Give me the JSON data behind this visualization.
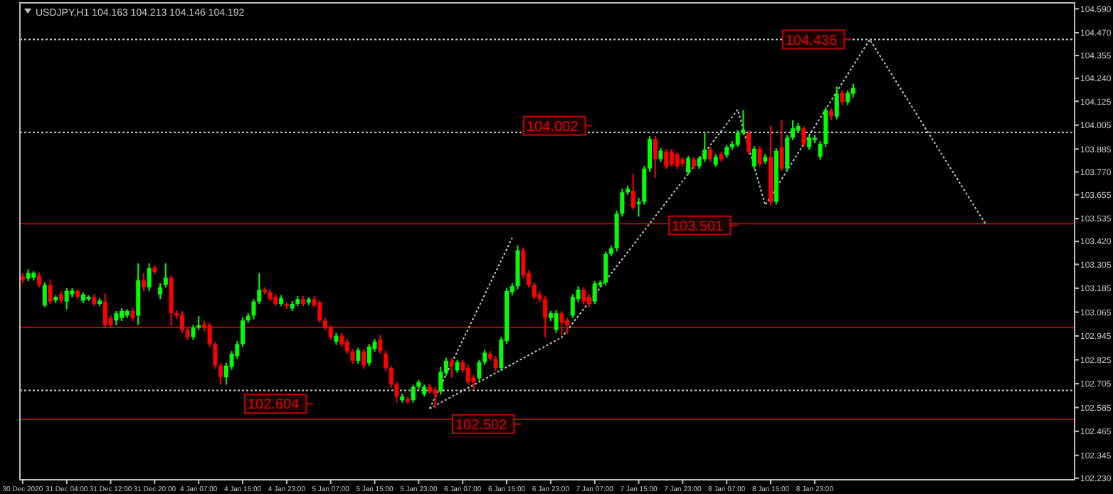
{
  "chart_data": {
    "type": "candlestick",
    "title": "USDJPY,H1 104.163 104.213 104.146 104.192",
    "categories": [
      "30 Dec 2020",
      null,
      null,
      null,
      null,
      null,
      null,
      null,
      "31 Dec 04:00",
      null,
      null,
      null,
      null,
      null,
      null,
      null,
      "31 Dec 12:00",
      null,
      null,
      null,
      null,
      null,
      null,
      null,
      "31 Dec 20:00",
      null,
      null,
      null,
      null,
      null,
      null,
      null,
      "4 Jan 07:00",
      null,
      null,
      null,
      null,
      null,
      null,
      null,
      "4 Jan 15:00",
      null,
      null,
      null,
      null,
      null,
      null,
      null,
      "4 Jan 23:00",
      null,
      null,
      null,
      null,
      null,
      null,
      null,
      "5 Jan 07:00",
      null,
      null,
      null,
      null,
      null,
      null,
      null,
      "5 Jan 15:00",
      null,
      null,
      null,
      null,
      null,
      null,
      null,
      "5 Jan 23:00",
      null,
      null,
      null,
      null,
      null,
      null,
      null,
      "6 Jan 07:00",
      null,
      null,
      null,
      null,
      null,
      null,
      null,
      "6 Jan 15:00",
      null,
      null,
      null,
      null,
      null,
      null,
      null,
      "6 Jan 23:00",
      null,
      null,
      null,
      null,
      null,
      null,
      null,
      "7 Jan 07:00",
      null,
      null,
      null,
      null,
      null,
      null,
      null,
      "7 Jan 15:00",
      null,
      null,
      null,
      null,
      null,
      null,
      null,
      "7 Jan 23:00",
      null,
      null,
      null,
      null,
      null,
      null,
      null,
      "8 Jan 07:00",
      null,
      null,
      null,
      null,
      null,
      null,
      null,
      "8 Jan 15:00",
      null,
      null,
      null,
      null,
      null,
      null,
      null,
      "8 Jan 23:00",
      null,
      null,
      null,
      null,
      null,
      null,
      null,
      null,
      null,
      null,
      null,
      null,
      null,
      null,
      null,
      null,
      null,
      null,
      null,
      null,
      null,
      null,
      null,
      null,
      null,
      null,
      null,
      null,
      null,
      null,
      null,
      null,
      null,
      null,
      null,
      null,
      null,
      null,
      null,
      null,
      null,
      null,
      null,
      null,
      null,
      null,
      null
    ],
    "ohlc": [
      [
        103.245,
        103.26,
        103.21,
        103.226
      ],
      [
        103.233,
        103.28,
        103.22,
        103.262
      ],
      [
        103.238,
        103.27,
        103.225,
        103.262
      ],
      [
        103.25,
        103.265,
        103.19,
        103.202
      ],
      [
        103.099,
        103.215,
        103.09,
        103.202
      ],
      [
        103.202,
        103.23,
        103.105,
        103.118
      ],
      [
        103.123,
        103.15,
        103.11,
        103.142
      ],
      [
        103.154,
        103.17,
        103.11,
        103.123
      ],
      [
        103.118,
        103.185,
        103.08,
        103.171
      ],
      [
        103.154,
        103.185,
        103.14,
        103.173
      ],
      [
        103.171,
        103.18,
        103.13,
        103.142
      ],
      [
        103.123,
        103.165,
        103.11,
        103.154
      ],
      [
        103.13,
        103.15,
        103.12,
        103.142
      ],
      [
        103.142,
        103.155,
        103.095,
        103.106
      ],
      [
        103.106,
        103.135,
        103.095,
        103.123
      ],
      [
        103.118,
        103.16,
        102.985,
        102.999
      ],
      [
        103.035,
        103.05,
        102.985,
        102.999
      ],
      [
        103.023,
        103.07,
        103.0,
        103.059
      ],
      [
        103.035,
        103.085,
        103.02,
        103.071
      ],
      [
        103.047,
        103.08,
        103.035,
        103.071
      ],
      [
        103.071,
        103.085,
        103.02,
        103.035
      ],
      [
        103.047,
        103.31,
        103.0,
        103.226
      ],
      [
        103.226,
        103.26,
        103.17,
        103.19
      ],
      [
        103.19,
        103.31,
        103.17,
        103.286
      ],
      [
        103.29,
        103.3,
        103.255,
        103.266
      ],
      [
        103.154,
        103.21,
        103.13,
        103.19
      ],
      [
        103.202,
        103.31,
        103.19,
        103.238
      ],
      [
        103.238,
        103.25,
        102.995,
        103.059
      ],
      [
        103.059,
        103.075,
        103.03,
        103.047
      ],
      [
        103.052,
        103.07,
        102.96,
        102.975
      ],
      [
        102.975,
        102.99,
        102.925,
        102.939
      ],
      [
        102.939,
        103.0,
        102.925,
        102.987
      ],
      [
        102.987,
        103.045,
        102.975,
        102.999
      ],
      [
        103.004,
        103.02,
        102.97,
        102.987
      ],
      [
        102.999,
        103.01,
        102.89,
        102.904
      ],
      [
        102.904,
        102.915,
        102.78,
        102.796
      ],
      [
        102.796,
        102.81,
        102.7,
        102.737
      ],
      [
        102.737,
        102.81,
        102.7,
        102.796
      ],
      [
        102.789,
        102.87,
        102.775,
        102.856
      ],
      [
        102.844,
        102.92,
        102.83,
        102.904
      ],
      [
        102.904,
        103.04,
        102.89,
        103.023
      ],
      [
        103.023,
        103.06,
        103.01,
        103.047
      ],
      [
        103.047,
        103.13,
        103.03,
        103.118
      ],
      [
        103.118,
        103.26,
        103.105,
        103.178
      ],
      [
        103.178,
        103.19,
        103.155,
        103.166
      ],
      [
        103.166,
        103.18,
        103.12,
        103.13
      ],
      [
        103.142,
        103.155,
        103.095,
        103.106
      ],
      [
        103.106,
        103.15,
        103.095,
        103.135
      ],
      [
        103.106,
        103.115,
        103.08,
        103.095
      ],
      [
        103.083,
        103.12,
        103.07,
        103.106
      ],
      [
        103.106,
        103.145,
        103.095,
        103.13
      ],
      [
        103.13,
        103.145,
        103.095,
        103.106
      ],
      [
        103.114,
        103.14,
        103.1,
        103.13
      ],
      [
        103.13,
        103.145,
        103.09,
        103.099
      ],
      [
        103.114,
        103.125,
        103.01,
        103.023
      ],
      [
        103.023,
        103.035,
        102.975,
        102.987
      ],
      [
        102.987,
        103.0,
        102.925,
        102.939
      ],
      [
        102.916,
        102.96,
        102.9,
        102.947
      ],
      [
        102.947,
        102.96,
        102.89,
        102.904
      ],
      [
        102.916,
        102.93,
        102.855,
        102.868
      ],
      [
        102.868,
        102.88,
        102.805,
        102.82
      ],
      [
        102.82,
        102.885,
        102.805,
        102.873
      ],
      [
        102.868,
        102.88,
        102.78,
        102.796
      ],
      [
        102.808,
        102.905,
        102.795,
        102.892
      ],
      [
        102.88,
        102.93,
        102.865,
        102.916
      ],
      [
        102.928,
        102.95,
        102.855,
        102.868
      ],
      [
        102.856,
        102.87,
        102.77,
        102.784
      ],
      [
        102.784,
        102.795,
        102.685,
        102.701
      ],
      [
        102.701,
        102.715,
        102.61,
        102.641
      ],
      [
        102.622,
        102.655,
        102.61,
        102.641
      ],
      [
        102.629,
        102.64,
        102.605,
        102.617
      ],
      [
        102.622,
        102.7,
        102.61,
        102.689
      ],
      [
        102.689,
        102.725,
        102.675,
        102.713
      ],
      [
        102.653,
        102.7,
        102.64,
        102.689
      ],
      [
        102.689,
        102.705,
        102.655,
        102.665
      ],
      [
        102.677,
        102.69,
        102.58,
        102.653
      ],
      [
        102.665,
        102.79,
        102.65,
        102.765
      ],
      [
        102.76,
        102.835,
        102.745,
        102.82
      ],
      [
        102.82,
        102.835,
        102.735,
        102.796
      ],
      [
        102.772,
        102.825,
        102.76,
        102.813
      ],
      [
        102.813,
        102.825,
        102.76,
        102.772
      ],
      [
        102.784,
        102.8,
        102.7,
        102.713
      ],
      [
        102.736,
        102.75,
        102.675,
        102.713
      ],
      [
        102.732,
        102.825,
        102.72,
        102.813
      ],
      [
        102.813,
        102.875,
        102.8,
        102.861
      ],
      [
        102.856,
        102.87,
        102.82,
        102.832
      ],
      [
        102.832,
        102.845,
        102.77,
        102.784
      ],
      [
        102.784,
        102.94,
        102.77,
        102.927
      ],
      [
        102.92,
        103.185,
        102.905,
        103.171
      ],
      [
        103.166,
        103.21,
        103.15,
        103.195
      ],
      [
        103.195,
        103.4,
        103.18,
        103.376
      ],
      [
        103.376,
        103.39,
        103.235,
        103.25
      ],
      [
        103.261,
        103.275,
        103.19,
        103.202
      ],
      [
        103.202,
        103.215,
        103.13,
        103.142
      ],
      [
        103.154,
        103.17,
        103.115,
        103.13
      ],
      [
        103.13,
        103.145,
        102.94,
        103.035
      ],
      [
        103.035,
        103.07,
        103.02,
        103.059
      ],
      [
        102.975,
        103.075,
        102.96,
        103.059
      ],
      [
        103.059,
        103.07,
        102.95,
        103.011
      ],
      [
        103.023,
        103.035,
        102.955,
        102.999
      ],
      [
        103.047,
        103.155,
        103.035,
        103.142
      ],
      [
        103.13,
        103.195,
        103.115,
        103.178
      ],
      [
        103.178,
        103.19,
        103.105,
        103.118
      ],
      [
        103.142,
        103.155,
        103.09,
        103.106
      ],
      [
        103.118,
        103.22,
        103.105,
        103.209
      ],
      [
        103.202,
        103.225,
        103.19,
        103.214
      ],
      [
        103.214,
        103.37,
        103.2,
        103.357
      ],
      [
        103.357,
        103.4,
        103.345,
        103.386
      ],
      [
        103.386,
        103.575,
        103.37,
        103.56
      ],
      [
        103.56,
        103.685,
        103.545,
        103.667
      ],
      [
        103.667,
        103.7,
        103.655,
        103.686
      ],
      [
        103.674,
        103.76,
        103.58,
        103.591
      ],
      [
        103.608,
        103.64,
        103.545,
        103.619
      ],
      [
        103.619,
        103.8,
        103.605,
        103.787
      ],
      [
        103.787,
        103.95,
        103.77,
        103.935
      ],
      [
        103.935,
        103.95,
        103.74,
        103.834
      ],
      [
        103.834,
        103.89,
        103.82,
        103.877
      ],
      [
        103.87,
        103.885,
        103.785,
        103.798
      ],
      [
        103.87,
        103.885,
        103.795,
        103.81
      ],
      [
        103.858,
        103.87,
        103.785,
        103.798
      ],
      [
        103.834,
        103.845,
        103.795,
        103.81
      ],
      [
        103.767,
        103.85,
        103.755,
        103.839
      ],
      [
        103.834,
        103.845,
        103.785,
        103.798
      ],
      [
        103.798,
        103.85,
        103.785,
        103.839
      ],
      [
        103.834,
        103.97,
        103.82,
        103.882
      ],
      [
        103.882,
        103.895,
        103.82,
        103.834
      ],
      [
        103.806,
        103.86,
        103.795,
        103.846
      ],
      [
        103.858,
        103.87,
        103.82,
        103.834
      ],
      [
        103.853,
        103.905,
        103.84,
        103.894
      ],
      [
        103.894,
        103.925,
        103.88,
        103.911
      ],
      [
        103.906,
        103.98,
        103.895,
        103.966
      ],
      [
        103.966,
        104.08,
        103.955,
        103.982
      ],
      [
        103.966,
        103.98,
        103.855,
        103.87
      ],
      [
        103.798,
        103.9,
        103.785,
        103.887
      ],
      [
        103.887,
        103.9,
        103.795,
        103.81
      ],
      [
        103.822,
        103.86,
        103.81,
        103.846
      ],
      [
        103.846,
        104.0,
        103.6,
        103.619
      ],
      [
        103.619,
        103.89,
        103.605,
        103.877
      ],
      [
        103.894,
        104.03,
        103.775,
        103.787
      ],
      [
        103.787,
        103.955,
        103.775,
        103.942
      ],
      [
        103.942,
        104.03,
        103.93,
        103.989
      ],
      [
        103.977,
        104.015,
        103.965,
        104.001
      ],
      [
        103.989,
        104.0,
        103.895,
        103.906
      ],
      [
        103.894,
        103.955,
        103.88,
        103.942
      ],
      [
        103.93,
        103.955,
        103.915,
        103.942
      ],
      [
        103.846,
        103.925,
        103.83,
        103.911
      ],
      [
        103.911,
        104.095,
        103.895,
        104.08
      ],
      [
        104.078,
        104.09,
        104.03,
        104.049
      ],
      [
        104.049,
        104.2,
        104.035,
        104.164
      ],
      [
        104.168,
        104.18,
        104.105,
        104.121
      ],
      [
        104.121,
        104.18,
        104.105,
        104.168
      ],
      [
        104.163,
        104.213,
        104.146,
        104.192
      ],
      null,
      null,
      null,
      null,
      null,
      null,
      null,
      null,
      null,
      null,
      null,
      null,
      null,
      null,
      null,
      null,
      null,
      null,
      null,
      null,
      null,
      null,
      null,
      null,
      null,
      null,
      null,
      null,
      null,
      null,
      null,
      null,
      null,
      null,
      null,
      null,
      null,
      null,
      null,
      null
    ],
    "colors": [
      "#ff0000",
      "#00ff00",
      "#00ff00",
      "#ff0000",
      "#00ff00",
      "#ff0000",
      "#00ff00",
      "#ff0000",
      "#00ff00",
      "#00ff00",
      "#ff0000",
      "#00ff00",
      "#00ff00",
      "#ff0000",
      "#00ff00",
      "#ff0000",
      "#ff0000",
      "#00ff00",
      "#00ff00",
      "#00ff00",
      "#ff0000",
      "#00ff00",
      "#ff0000",
      "#00ff00",
      "#ff0000",
      "#00ff00",
      "#00ff00",
      "#ff0000",
      "#ff0000",
      "#ff0000",
      "#ff0000",
      "#00ff00",
      "#00ff00",
      "#ff0000",
      "#ff0000",
      "#ff0000",
      "#ff0000",
      "#00ff00",
      "#00ff00",
      "#00ff00",
      "#00ff00",
      "#00ff00",
      "#00ff00",
      "#00ff00",
      "#ff0000",
      "#ff0000",
      "#ff0000",
      "#00ff00",
      "#ff0000",
      "#00ff00",
      "#00ff00",
      "#ff0000",
      "#00ff00",
      "#ff0000",
      "#ff0000",
      "#ff0000",
      "#ff0000",
      "#00ff00",
      "#ff0000",
      "#ff0000",
      "#ff0000",
      "#00ff00",
      "#ff0000",
      "#00ff00",
      "#00ff00",
      "#ff0000",
      "#ff0000",
      "#ff0000",
      "#ff0000",
      "#00ff00",
      "#ff0000",
      "#00ff00",
      "#00ff00",
      "#00ff00",
      "#ff0000",
      "#ff0000",
      "#00ff00",
      "#00ff00",
      "#ff0000",
      "#00ff00",
      "#ff0000",
      "#ff0000",
      "#ff0000",
      "#00ff00",
      "#00ff00",
      "#ff0000",
      "#ff0000",
      "#00ff00",
      "#00ff00",
      "#00ff00",
      "#00ff00",
      "#ff0000",
      "#ff0000",
      "#ff0000",
      "#ff0000",
      "#ff0000",
      "#00ff00",
      "#00ff00",
      "#ff0000",
      "#ff0000",
      "#00ff00",
      "#00ff00",
      "#ff0000",
      "#ff0000",
      "#00ff00",
      "#00ff00",
      "#00ff00",
      "#00ff00",
      "#00ff00",
      "#00ff00",
      "#00ff00",
      "#ff0000",
      "#00ff00",
      "#00ff00",
      "#00ff00",
      "#ff0000",
      "#00ff00",
      "#ff0000",
      "#ff0000",
      "#ff0000",
      "#ff0000",
      "#00ff00",
      "#ff0000",
      "#00ff00",
      "#00ff00",
      "#ff0000",
      "#00ff00",
      "#ff0000",
      "#00ff00",
      "#00ff00",
      "#00ff00",
      "#00ff00",
      "#ff0000",
      "#00ff00",
      "#ff0000",
      "#00ff00",
      "#ff0000",
      "#00ff00",
      "#ff0000",
      "#00ff00",
      "#00ff00",
      "#00ff00",
      "#ff0000",
      "#00ff00",
      "#00ff00",
      "#00ff00",
      "#00ff00",
      "#ff0000",
      "#00ff00",
      "#ff0000",
      "#00ff00",
      "#00ff00",
      null,
      null,
      null,
      null,
      null,
      null,
      null,
      null,
      null,
      null,
      null,
      null,
      null,
      null,
      null,
      null,
      null,
      null,
      null,
      null,
      null,
      null,
      null,
      null,
      null,
      null,
      null,
      null,
      null,
      null,
      null,
      null,
      null,
      null,
      null,
      null,
      null,
      null,
      null,
      null
    ],
    "series": [
      {
        "type": "line",
        "color": "#c8c8c8",
        "values": [
          null,
          null,
          null,
          null,
          null,
          null,
          null,
          null,
          null,
          null,
          null,
          null,
          null,
          null,
          null,
          null,
          null,
          null,
          null,
          null,
          null,
          null,
          null,
          null,
          null,
          null,
          null,
          null,
          null,
          null,
          null,
          null,
          null,
          null,
          null,
          null,
          null,
          null,
          null,
          null,
          null,
          null,
          null,
          null,
          null,
          null,
          null,
          null,
          null,
          null,
          null,
          null,
          null,
          null,
          null,
          null,
          null,
          null,
          null,
          null,
          null,
          null,
          null,
          null,
          null,
          null,
          null,
          null,
          null,
          null,
          null,
          null,
          null,
          null,
          102.58,
          null,
          null,
          null,
          null,
          null,
          null,
          null,
          null,
          null,
          null,
          null,
          null,
          null,
          null,
          null,
          null,
          null,
          null,
          null,
          null,
          null,
          null,
          null,
          102.938,
          null,
          null,
          null,
          null,
          null,
          null,
          null,
          null,
          null,
          null,
          null,
          null,
          null,
          null,
          null,
          103.51,
          null,
          null,
          null,
          null,
          null,
          null,
          null,
          null,
          null,
          null,
          null,
          null,
          null,
          null,
          null,
          104.083,
          null,
          null,
          null,
          null,
          103.603,
          null,
          null,
          null,
          null,
          null,
          null,
          null,
          null,
          null,
          null,
          null,
          null,
          null,
          null,
          null,
          null,
          null,
          null,
          104.436,
          null,
          null,
          null,
          null,
          null,
          null,
          null,
          null,
          null,
          null,
          null,
          null,
          null,
          null,
          null,
          null,
          null,
          null,
          null,
          null,
          103.51,
          null,
          null,
          null,
          null,
          null,
          null,
          null,
          null,
          null,
          null,
          null,
          null,
          null,
          null,
          null,
          null
        ]
      },
      {
        "type": "line",
        "color": "#c8c8c8",
        "values": [
          null,
          null,
          null,
          null,
          null,
          null,
          null,
          null,
          null,
          null,
          null,
          null,
          null,
          null,
          null,
          null,
          null,
          null,
          null,
          null,
          null,
          null,
          null,
          null,
          null,
          null,
          null,
          null,
          null,
          null,
          null,
          null,
          null,
          null,
          null,
          null,
          null,
          null,
          null,
          null,
          null,
          null,
          null,
          null,
          null,
          null,
          null,
          null,
          null,
          null,
          null,
          null,
          null,
          null,
          null,
          null,
          null,
          null,
          null,
          null,
          null,
          null,
          null,
          null,
          null,
          null,
          null,
          null,
          null,
          null,
          null,
          null,
          null,
          null,
          102.58,
          null,
          null,
          null,
          null,
          null,
          null,
          null,
          null,
          null,
          null,
          null,
          null,
          null,
          null,
          103.439,
          null,
          null,
          null,
          null,
          null,
          null,
          null,
          null,
          null,
          null,
          null,
          null,
          null,
          null,
          null,
          null,
          null,
          null,
          null,
          null,
          null,
          null,
          null,
          null,
          null,
          null,
          null,
          null,
          null,
          null,
          null,
          null,
          null,
          null,
          null,
          null,
          null,
          null,
          null,
          null,
          null,
          null,
          null,
          null,
          null,
          null,
          null,
          null,
          null,
          null,
          null,
          null,
          null,
          null,
          null,
          null,
          null,
          null,
          null,
          null,
          null,
          null,
          null,
          null,
          null,
          null,
          null,
          null,
          null,
          null,
          null,
          null,
          null,
          null,
          null,
          null,
          null,
          null,
          null,
          null,
          null,
          null,
          null,
          null,
          null,
          null,
          null,
          null,
          null,
          null,
          null,
          null,
          null,
          null,
          null,
          null,
          null,
          null,
          null,
          null,
          null,
          null
        ]
      }
    ],
    "line_style": "dotted",
    "ylim": [
      102.222,
      104.62
    ],
    "yticks": [
      {
        "value": 102.23,
        "label": "102.230"
      },
      102.345,
      102.465,
      102.585,
      102.705,
      102.825,
      102.945,
      103.065,
      103.185,
      103.305,
      {
        "value": 103.42,
        "label": "103.420"
      },
      103.535,
      103.655,
      {
        "value": 103.77,
        "label": "103.770"
      },
      103.885,
      104.005,
      104.125,
      {
        "value": 104.24,
        "label": "104.240"
      },
      104.355,
      {
        "value": 104.47,
        "label": "104.470"
      },
      {
        "value": 104.59,
        "label": "104.590"
      }
    ],
    "ref_lines": [
      {
        "axis": "y",
        "value": 103.51,
        "label": null,
        "color": "#b00000",
        "line_style": "solid"
      },
      {
        "axis": "y",
        "value": 102.988,
        "label": null,
        "color": "#b00000",
        "line_style": "solid"
      },
      {
        "axis": "y",
        "value": 102.526,
        "label": null,
        "color": "#b00000",
        "line_style": "solid"
      },
      {
        "axis": "y",
        "value": 104.436,
        "label": null,
        "color": "#c8c8c8",
        "line_style": "dotted"
      },
      {
        "axis": "y",
        "value": 103.969,
        "label": null,
        "color": "#c8c8c8",
        "line_style": "dotted"
      },
      {
        "axis": "y",
        "value": 102.671,
        "label": null,
        "color": "#c8c8c8",
        "line_style": "dotted"
      }
    ],
    "annotations": [
      {
        "text": "104.436",
        "y": 104.436
      },
      {
        "text": "104.002",
        "y": 104.002
      },
      {
        "text": "103.501",
        "y": 103.501
      },
      {
        "text": "102.604",
        "y": 102.604
      },
      {
        "text": "102.502",
        "y": 102.502
      }
    ]
  }
}
